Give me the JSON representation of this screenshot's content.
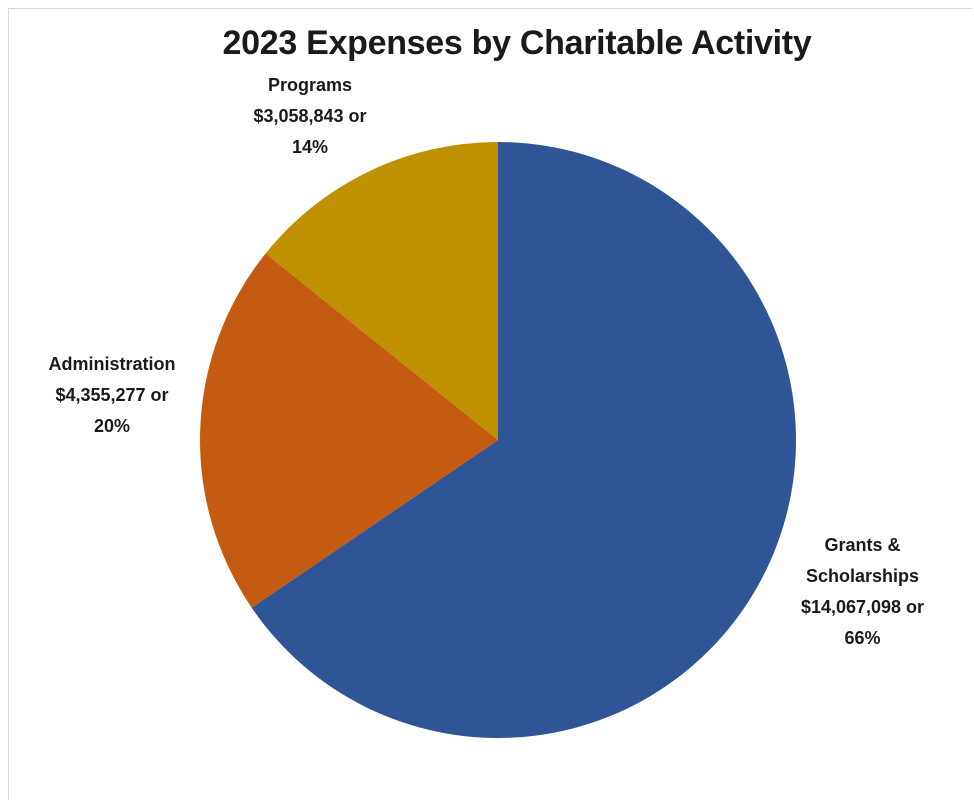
{
  "chart_data": {
    "type": "pie",
    "title": "2023 Expenses by Charitable Activity",
    "slices": [
      {
        "name": "Grants & Scholarships",
        "value": 14067098,
        "percent": 66,
        "color": "#2f5597",
        "label_lines": [
          "Grants &",
          "Scholarships",
          "$14,067,098 or",
          "66%"
        ]
      },
      {
        "name": "Administration",
        "value": 4355277,
        "percent": 20,
        "color": "#c55a11",
        "label_lines": [
          "Administration",
          "$4,355,277 or",
          "20%"
        ]
      },
      {
        "name": "Programs",
        "value": 3058843,
        "percent": 14,
        "color": "#bf9000",
        "label_lines": [
          "Programs",
          "$3,058,843 or",
          "14%"
        ]
      }
    ],
    "start_angle": "12 o'clock",
    "direction": "clockwise",
    "legend": "none",
    "data_labels": "outside, category name + value + percent"
  }
}
